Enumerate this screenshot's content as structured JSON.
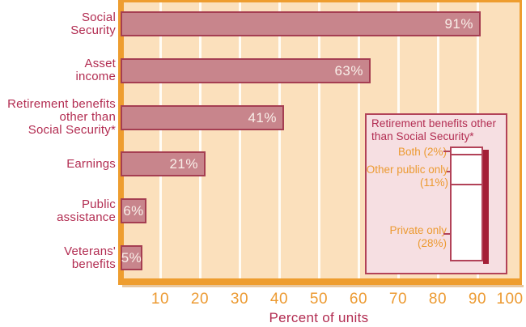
{
  "chart_data": {
    "type": "bar",
    "orientation": "horizontal",
    "xlabel": "Percent of units",
    "xlim": [
      0,
      100
    ],
    "x_ticks": [
      10,
      20,
      30,
      40,
      50,
      60,
      70,
      80,
      90,
      100
    ],
    "x_tick_labels": [
      "10",
      "20",
      "30",
      "40",
      "50",
      "60",
      "70",
      "80",
      "90",
      "100"
    ],
    "grid": "vertical-white-gridlines",
    "categories": [
      "Social Security",
      "Asset income",
      "Retirement benefits other than Social Security*",
      "Earnings",
      "Public assistance",
      "Veterans' benefits"
    ],
    "category_label_lines": [
      [
        "Social",
        "Security"
      ],
      [
        "Asset",
        "income"
      ],
      [
        "Retirement benefits",
        "other than",
        "Social Security*"
      ],
      [
        "Earnings"
      ],
      [
        "Public",
        "assistance"
      ],
      [
        "Veterans'",
        "benefits"
      ]
    ],
    "values": [
      91,
      63,
      41,
      21,
      6,
      5
    ],
    "value_labels": [
      "91%",
      "63%",
      "41%",
      "21%",
      "6%",
      "5%"
    ],
    "inset": {
      "title_lines": [
        "Retirement benefits other",
        "than Social Security*"
      ],
      "type": "stacked-bar",
      "total": 41,
      "segments": [
        {
          "name": "both",
          "label_lines": [
            "Both (2%)"
          ],
          "value": 2
        },
        {
          "name": "other-public-only",
          "label_lines": [
            "Other public only",
            "(11%)"
          ],
          "value": 11
        },
        {
          "name": "private-only",
          "label_lines": [
            "Private only",
            "(28%)"
          ],
          "value": 28
        }
      ]
    }
  },
  "colors": {
    "frame_orange": "#ee9d2f",
    "plot_background_peach": "#fbe0bc",
    "gridline_white": "#fffcf5",
    "bar_fill_rose": "#c8858c",
    "bar_border_crimson": "#a53e52",
    "label_crimson": "#b22c51",
    "tick_orange": "#ec9a31",
    "inset_background_pink": "#f6dfe2",
    "inset_border_crimson": "#b24258",
    "bar_shadow_dark_red": "#a41f37",
    "value_text_offwhite": "#f9efe9"
  }
}
